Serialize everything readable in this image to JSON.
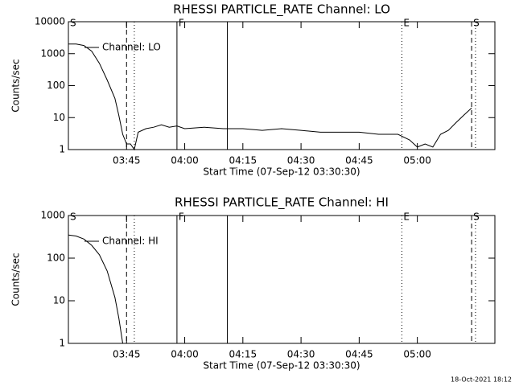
{
  "chart_data": [
    {
      "type": "line",
      "title": "RHESSI PARTICLE_RATE Channel: LO",
      "xlabel": "Start Time (07-Sep-12 03:30:30)",
      "ylabel": "Counts/sec",
      "log_y": true,
      "legend": "upper left",
      "xlim": [
        "03:30",
        "05:20"
      ],
      "ylim": [
        1,
        10000
      ],
      "xticks": [
        "03:45",
        "04:00",
        "04:15",
        "04:30",
        "04:45",
        "05:00"
      ],
      "yticks": [
        1,
        10,
        100,
        1000,
        10000
      ],
      "x": [
        "03:30",
        "03:32",
        "03:34",
        "03:36",
        "03:38",
        "03:40",
        "03:42",
        "03:43",
        "03:44",
        "03:45",
        "03:46",
        "03:47",
        "03:48",
        "03:50",
        "03:52",
        "03:54",
        "03:56",
        "03:58",
        "04:00",
        "04:05",
        "04:10",
        "04:15",
        "04:20",
        "04:25",
        "04:30",
        "04:35",
        "04:40",
        "04:45",
        "04:50",
        "04:55",
        "04:58",
        "05:00",
        "05:02",
        "05:04",
        "05:06",
        "05:08",
        "05:10",
        "05:12",
        "05:14"
      ],
      "series": [
        {
          "name": "Channel: LO",
          "color": "#000000",
          "values": [
            2000,
            2000,
            1800,
            1200,
            500,
            150,
            40,
            12,
            3,
            1.5,
            1.5,
            1,
            3.5,
            4.5,
            5,
            6,
            5,
            5.5,
            4.5,
            5,
            4.5,
            4.5,
            4,
            4.5,
            4,
            3.5,
            3.5,
            3.5,
            3,
            3,
            2,
            1.2,
            1.5,
            1.2,
            3,
            4,
            7,
            12,
            20
          ]
        }
      ],
      "vlines": [
        {
          "x": "03:45",
          "style": "dashed"
        },
        {
          "x": "03:47",
          "style": "dotted"
        },
        {
          "x": "03:58",
          "style": "solid"
        },
        {
          "x": "04:11",
          "style": "solid"
        },
        {
          "x": "04:56",
          "style": "dotted"
        },
        {
          "x": "05:14",
          "style": "dashed"
        },
        {
          "x": "05:15",
          "style": "dotted"
        }
      ],
      "markers": [
        {
          "x": "03:30",
          "label": "S"
        },
        {
          "x": "03:58",
          "label": "F"
        },
        {
          "x": "04:56",
          "label": "E"
        },
        {
          "x": "05:14",
          "label": "S"
        }
      ]
    },
    {
      "type": "line",
      "title": "RHESSI PARTICLE_RATE Channel: HI",
      "xlabel": "Start Time (07-Sep-12 03:30:30)",
      "ylabel": "Counts/sec",
      "log_y": true,
      "legend": "upper left",
      "xlim": [
        "03:30",
        "05:20"
      ],
      "ylim": [
        1,
        1000
      ],
      "xticks": [
        "03:45",
        "04:00",
        "04:15",
        "04:30",
        "04:45",
        "05:00"
      ],
      "yticks": [
        1,
        10,
        100,
        1000
      ],
      "x": [
        "03:30",
        "03:32",
        "03:34",
        "03:36",
        "03:38",
        "03:40",
        "03:42",
        "03:43",
        "03:44"
      ],
      "series": [
        {
          "name": "Channel: HI",
          "color": "#000000",
          "values": [
            350,
            330,
            280,
            200,
            120,
            50,
            12,
            4,
            1
          ]
        }
      ],
      "vlines": [
        {
          "x": "03:45",
          "style": "dashed"
        },
        {
          "x": "03:47",
          "style": "dotted"
        },
        {
          "x": "03:58",
          "style": "solid"
        },
        {
          "x": "04:11",
          "style": "solid"
        },
        {
          "x": "04:56",
          "style": "dotted"
        },
        {
          "x": "05:14",
          "style": "dashed"
        },
        {
          "x": "05:15",
          "style": "dotted"
        }
      ],
      "markers": [
        {
          "x": "03:30",
          "label": "S"
        },
        {
          "x": "03:58",
          "label": "F"
        },
        {
          "x": "04:56",
          "label": "E"
        },
        {
          "x": "05:14",
          "label": "S"
        }
      ]
    }
  ],
  "footer": "18-Oct-2021 18:12"
}
